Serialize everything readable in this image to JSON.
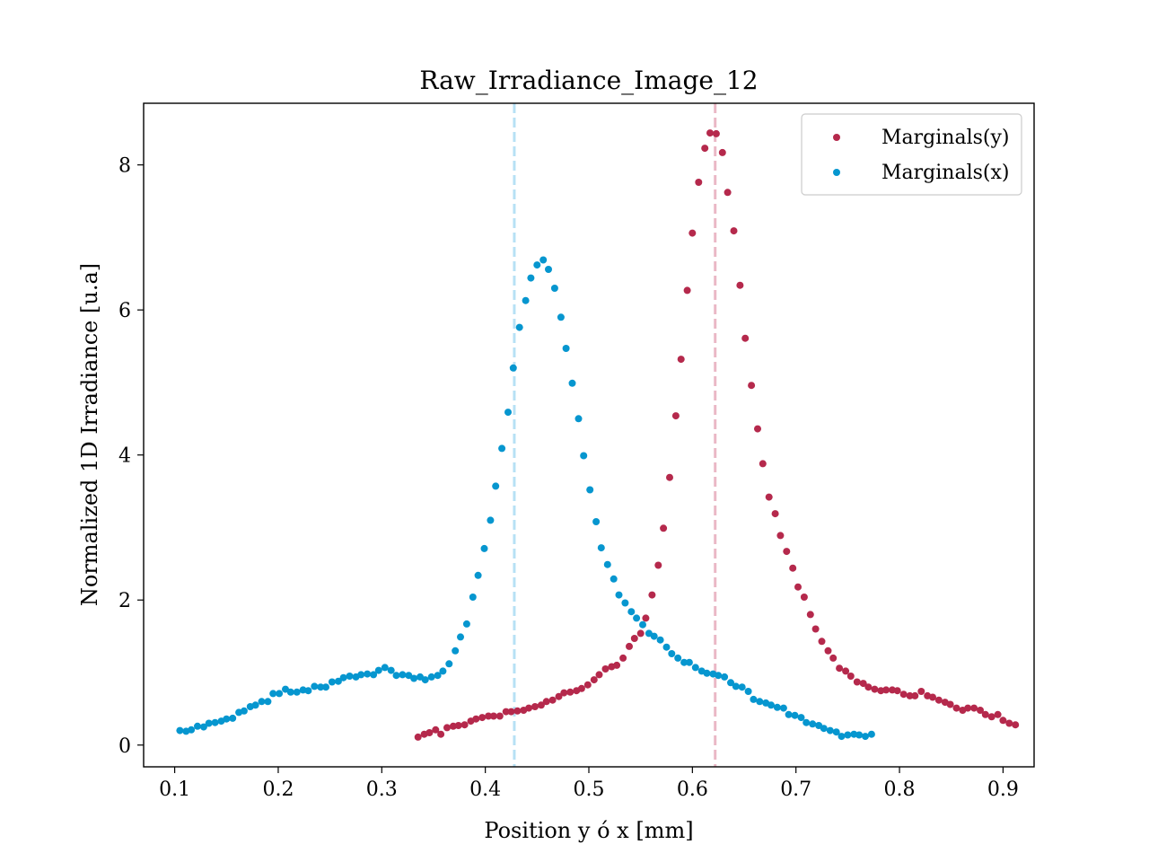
{
  "chart_data": {
    "type": "scatter",
    "title": "Raw_Irradiance_Image_12",
    "xlabel": "Position y ó x [mm]",
    "ylabel": "Normalized 1D Irradiance [u.a]",
    "xlim": [
      0.07,
      0.93
    ],
    "ylim": [
      -0.3,
      8.85
    ],
    "xticks": [
      {
        "value": 0.1,
        "label": "0.1"
      },
      {
        "value": 0.2,
        "label": "0.2"
      },
      {
        "value": 0.3,
        "label": "0.3"
      },
      {
        "value": 0.4,
        "label": "0.4"
      },
      {
        "value": 0.5,
        "label": "0.5"
      },
      {
        "value": 0.6,
        "label": "0.6"
      },
      {
        "value": 0.7,
        "label": "0.7"
      },
      {
        "value": 0.8,
        "label": "0.8"
      },
      {
        "value": 0.9,
        "label": "0.9"
      }
    ],
    "yticks": [
      {
        "value": 0,
        "label": "0"
      },
      {
        "value": 2,
        "label": "2"
      },
      {
        "value": 4,
        "label": "4"
      },
      {
        "value": 6,
        "label": "6"
      },
      {
        "value": 8,
        "label": "8"
      }
    ],
    "grid": false,
    "legend_position": "top-right",
    "series": [
      {
        "name": "Marginals(y)",
        "color": "#b5294c",
        "vline": 0.622,
        "vline_color": "#eab8c6",
        "points": [
          [
            0.335,
            0.11
          ],
          [
            0.341,
            0.15
          ],
          [
            0.346,
            0.17
          ],
          [
            0.352,
            0.21
          ],
          [
            0.357,
            0.15
          ],
          [
            0.363,
            0.24
          ],
          [
            0.369,
            0.26
          ],
          [
            0.374,
            0.27
          ],
          [
            0.38,
            0.28
          ],
          [
            0.386,
            0.33
          ],
          [
            0.391,
            0.36
          ],
          [
            0.397,
            0.38
          ],
          [
            0.403,
            0.4
          ],
          [
            0.408,
            0.4
          ],
          [
            0.414,
            0.4
          ],
          [
            0.42,
            0.46
          ],
          [
            0.425,
            0.46
          ],
          [
            0.431,
            0.47
          ],
          [
            0.437,
            0.48
          ],
          [
            0.442,
            0.51
          ],
          [
            0.448,
            0.53
          ],
          [
            0.454,
            0.55
          ],
          [
            0.459,
            0.6
          ],
          [
            0.465,
            0.62
          ],
          [
            0.471,
            0.67
          ],
          [
            0.476,
            0.72
          ],
          [
            0.482,
            0.73
          ],
          [
            0.488,
            0.75
          ],
          [
            0.493,
            0.78
          ],
          [
            0.499,
            0.83
          ],
          [
            0.505,
            0.9
          ],
          [
            0.51,
            0.97
          ],
          [
            0.516,
            1.05
          ],
          [
            0.522,
            1.08
          ],
          [
            0.527,
            1.1
          ],
          [
            0.533,
            1.2
          ],
          [
            0.539,
            1.36
          ],
          [
            0.544,
            1.47
          ],
          [
            0.55,
            1.54
          ],
          [
            0.555,
            1.75
          ],
          [
            0.561,
            2.07
          ],
          [
            0.567,
            2.48
          ],
          [
            0.572,
            2.99
          ],
          [
            0.578,
            3.69
          ],
          [
            0.584,
            4.54
          ],
          [
            0.589,
            5.32
          ],
          [
            0.595,
            6.27
          ],
          [
            0.6,
            7.06
          ],
          [
            0.606,
            7.76
          ],
          [
            0.612,
            8.23
          ],
          [
            0.617,
            8.44
          ],
          [
            0.623,
            8.43
          ],
          [
            0.629,
            8.17
          ],
          [
            0.634,
            7.62
          ],
          [
            0.64,
            7.09
          ],
          [
            0.646,
            6.34
          ],
          [
            0.651,
            5.61
          ],
          [
            0.657,
            4.96
          ],
          [
            0.663,
            4.36
          ],
          [
            0.668,
            3.88
          ],
          [
            0.674,
            3.42
          ],
          [
            0.68,
            3.19
          ],
          [
            0.685,
            2.89
          ],
          [
            0.691,
            2.67
          ],
          [
            0.697,
            2.44
          ],
          [
            0.702,
            2.18
          ],
          [
            0.708,
            2.04
          ],
          [
            0.714,
            1.8
          ],
          [
            0.719,
            1.6
          ],
          [
            0.725,
            1.43
          ],
          [
            0.731,
            1.3
          ],
          [
            0.736,
            1.2
          ],
          [
            0.742,
            1.06
          ],
          [
            0.748,
            1.02
          ],
          [
            0.753,
            0.95
          ],
          [
            0.759,
            0.87
          ],
          [
            0.765,
            0.85
          ],
          [
            0.77,
            0.8
          ],
          [
            0.776,
            0.77
          ],
          [
            0.782,
            0.75
          ],
          [
            0.787,
            0.76
          ],
          [
            0.793,
            0.76
          ],
          [
            0.798,
            0.75
          ],
          [
            0.804,
            0.7
          ],
          [
            0.81,
            0.68
          ],
          [
            0.815,
            0.68
          ],
          [
            0.821,
            0.74
          ],
          [
            0.827,
            0.68
          ],
          [
            0.832,
            0.66
          ],
          [
            0.838,
            0.62
          ],
          [
            0.844,
            0.59
          ],
          [
            0.849,
            0.56
          ],
          [
            0.855,
            0.51
          ],
          [
            0.861,
            0.48
          ],
          [
            0.866,
            0.51
          ],
          [
            0.872,
            0.51
          ],
          [
            0.878,
            0.48
          ],
          [
            0.883,
            0.42
          ],
          [
            0.889,
            0.39
          ],
          [
            0.895,
            0.42
          ],
          [
            0.9,
            0.34
          ],
          [
            0.906,
            0.3
          ],
          [
            0.912,
            0.28
          ]
        ]
      },
      {
        "name": "Marginals(x)",
        "color": "#0696cf",
        "vline": 0.428,
        "vline_color": "#b7e1f5",
        "points": [
          [
            0.105,
            0.2
          ],
          [
            0.111,
            0.19
          ],
          [
            0.116,
            0.21
          ],
          [
            0.122,
            0.26
          ],
          [
            0.128,
            0.25
          ],
          [
            0.133,
            0.3
          ],
          [
            0.139,
            0.31
          ],
          [
            0.145,
            0.33
          ],
          [
            0.15,
            0.36
          ],
          [
            0.156,
            0.37
          ],
          [
            0.162,
            0.45
          ],
          [
            0.167,
            0.47
          ],
          [
            0.173,
            0.53
          ],
          [
            0.178,
            0.55
          ],
          [
            0.184,
            0.6
          ],
          [
            0.19,
            0.6
          ],
          [
            0.195,
            0.71
          ],
          [
            0.201,
            0.71
          ],
          [
            0.207,
            0.77
          ],
          [
            0.212,
            0.73
          ],
          [
            0.218,
            0.73
          ],
          [
            0.224,
            0.76
          ],
          [
            0.229,
            0.75
          ],
          [
            0.235,
            0.81
          ],
          [
            0.241,
            0.8
          ],
          [
            0.246,
            0.8
          ],
          [
            0.252,
            0.87
          ],
          [
            0.258,
            0.88
          ],
          [
            0.263,
            0.93
          ],
          [
            0.269,
            0.95
          ],
          [
            0.275,
            0.94
          ],
          [
            0.28,
            0.97
          ],
          [
            0.286,
            0.98
          ],
          [
            0.292,
            0.97
          ],
          [
            0.297,
            1.03
          ],
          [
            0.303,
            1.07
          ],
          [
            0.309,
            1.03
          ],
          [
            0.314,
            0.96
          ],
          [
            0.32,
            0.97
          ],
          [
            0.326,
            0.96
          ],
          [
            0.331,
            0.92
          ],
          [
            0.337,
            0.94
          ],
          [
            0.342,
            0.9
          ],
          [
            0.348,
            0.94
          ],
          [
            0.354,
            0.96
          ],
          [
            0.359,
            1.02
          ],
          [
            0.365,
            1.12
          ],
          [
            0.371,
            1.3
          ],
          [
            0.376,
            1.49
          ],
          [
            0.382,
            1.67
          ],
          [
            0.388,
            2.04
          ],
          [
            0.393,
            2.34
          ],
          [
            0.399,
            2.71
          ],
          [
            0.405,
            3.1
          ],
          [
            0.41,
            3.57
          ],
          [
            0.416,
            4.09
          ],
          [
            0.422,
            4.59
          ],
          [
            0.427,
            5.2
          ],
          [
            0.433,
            5.76
          ],
          [
            0.439,
            6.13
          ],
          [
            0.444,
            6.44
          ],
          [
            0.45,
            6.62
          ],
          [
            0.456,
            6.69
          ],
          [
            0.461,
            6.56
          ],
          [
            0.467,
            6.3
          ],
          [
            0.473,
            5.9
          ],
          [
            0.478,
            5.47
          ],
          [
            0.484,
            4.99
          ],
          [
            0.49,
            4.5
          ],
          [
            0.495,
            3.99
          ],
          [
            0.501,
            3.52
          ],
          [
            0.507,
            3.08
          ],
          [
            0.512,
            2.72
          ],
          [
            0.518,
            2.49
          ],
          [
            0.524,
            2.29
          ],
          [
            0.529,
            2.07
          ],
          [
            0.535,
            1.96
          ],
          [
            0.541,
            1.84
          ],
          [
            0.546,
            1.75
          ],
          [
            0.552,
            1.66
          ],
          [
            0.558,
            1.54
          ],
          [
            0.563,
            1.5
          ],
          [
            0.569,
            1.45
          ],
          [
            0.575,
            1.35
          ],
          [
            0.58,
            1.26
          ],
          [
            0.586,
            1.2
          ],
          [
            0.592,
            1.14
          ],
          [
            0.597,
            1.14
          ],
          [
            0.603,
            1.07
          ],
          [
            0.609,
            1.02
          ],
          [
            0.614,
            0.99
          ],
          [
            0.62,
            0.98
          ],
          [
            0.625,
            0.96
          ],
          [
            0.631,
            0.94
          ],
          [
            0.637,
            0.86
          ],
          [
            0.642,
            0.81
          ],
          [
            0.648,
            0.8
          ],
          [
            0.654,
            0.74
          ],
          [
            0.659,
            0.63
          ],
          [
            0.665,
            0.6
          ],
          [
            0.671,
            0.58
          ],
          [
            0.676,
            0.55
          ],
          [
            0.682,
            0.52
          ],
          [
            0.688,
            0.51
          ],
          [
            0.693,
            0.42
          ],
          [
            0.699,
            0.41
          ],
          [
            0.705,
            0.38
          ],
          [
            0.71,
            0.31
          ],
          [
            0.716,
            0.29
          ],
          [
            0.722,
            0.27
          ],
          [
            0.727,
            0.23
          ],
          [
            0.733,
            0.2
          ],
          [
            0.739,
            0.18
          ],
          [
            0.744,
            0.12
          ],
          [
            0.75,
            0.14
          ],
          [
            0.756,
            0.15
          ],
          [
            0.761,
            0.14
          ],
          [
            0.767,
            0.12
          ],
          [
            0.773,
            0.15
          ]
        ]
      }
    ]
  }
}
